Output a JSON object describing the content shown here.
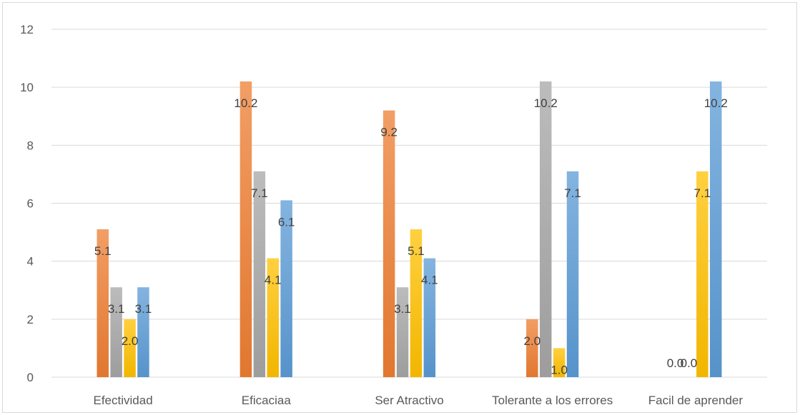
{
  "chart_data": {
    "type": "bar",
    "title": "",
    "xlabel": "",
    "ylabel": "",
    "ylim": [
      0,
      12
    ],
    "yticks": [
      0,
      2,
      4,
      6,
      8,
      10,
      12
    ],
    "grid": true,
    "legend": "none",
    "categories": [
      "Efectividad",
      "Eficaciaa",
      "Ser Atractivo",
      "Tolerante a los errores",
      "Facil de aprender"
    ],
    "series": [
      {
        "color": "#ed7d31",
        "values": [
          5.1,
          10.2,
          9.2,
          2.0,
          0.0
        ],
        "labels": [
          "5.1",
          "10.2",
          "9.2",
          "2.0",
          "0.0"
        ]
      },
      {
        "color": "#a5a5a5",
        "values": [
          3.1,
          7.1,
          3.1,
          10.2,
          0.0
        ],
        "labels": [
          "3.1",
          "7.1",
          "3.1",
          "10.2",
          "0.0"
        ]
      },
      {
        "color": "#ffc000",
        "values": [
          2.0,
          4.1,
          5.1,
          1.0,
          7.1
        ],
        "labels": [
          "2.0",
          "4.1",
          "5.1",
          "1.0",
          "7.1"
        ]
      },
      {
        "color": "#5b9bd5",
        "values": [
          3.1,
          6.1,
          4.1,
          7.1,
          10.2
        ],
        "labels": [
          "3.1",
          "6.1",
          "4.1",
          "7.1",
          "10.2"
        ]
      }
    ]
  }
}
